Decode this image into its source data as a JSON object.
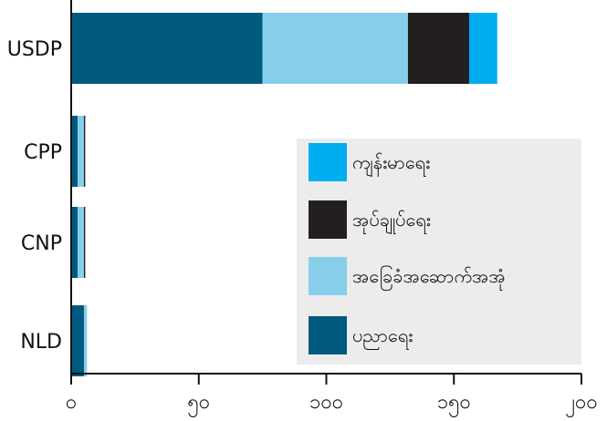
{
  "chart_data": {
    "type": "bar",
    "orientation": "horizontal",
    "stacked": true,
    "categories": [
      "USDP",
      "CPP",
      "CNP",
      "NLD"
    ],
    "series": [
      {
        "name": "ပညာရေး",
        "color": "#005a7f",
        "values": [
          75,
          2.5,
          2.5,
          5
        ]
      },
      {
        "name": "အခြေခံအဆောက်အအုံ",
        "color": "#87ceeb",
        "values": [
          57,
          2.5,
          2.5,
          1.2
        ]
      },
      {
        "name": "အုပ်ချုပ်ရေး",
        "color": "#231f20",
        "values": [
          24,
          0.5,
          0.5,
          0
        ]
      },
      {
        "name": "ကျန်းမာရေး",
        "color": "#00aeef",
        "values": [
          11,
          0,
          0,
          0
        ]
      }
    ],
    "xticks": [
      "၀",
      "၅၀",
      "၁၀၀",
      "၁၅၀",
      "၂၀၀"
    ],
    "xlim": [
      0,
      200
    ],
    "xlabel": "",
    "ylabel": "",
    "title": "",
    "grid": false,
    "legend_position": "center-right"
  }
}
